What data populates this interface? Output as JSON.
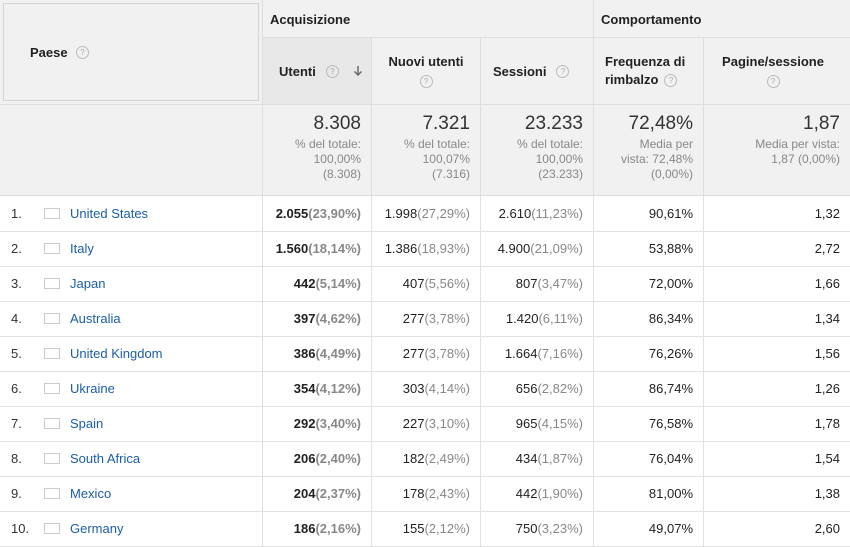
{
  "header": {
    "paese": "Paese",
    "group_acquisizione": "Acquisizione",
    "group_comportamento": "Comportamento",
    "col_utenti": "Utenti",
    "col_nuovi_utenti": "Nuovi utenti",
    "col_sessioni": "Sessioni",
    "col_frequenza_l1": "Frequenza di",
    "col_frequenza_l2": "rimbalzo",
    "col_pagine": "Pagine/sessione",
    "help": "?"
  },
  "totals": {
    "utenti": {
      "value": "8.308",
      "l1": "% del totale:",
      "l2": "100,00%",
      "l3": "(8.308)"
    },
    "nuovi": {
      "value": "7.321",
      "l1": "% del totale:",
      "l2": "100,07%",
      "l3": "(7.316)"
    },
    "sessioni": {
      "value": "23.233",
      "l1": "% del totale:",
      "l2": "100,00%",
      "l3": "(23.233)"
    },
    "frequenza": {
      "value": "72,48%",
      "l1": "Media per",
      "l2": "vista: 72,48%",
      "l3": "(0,00%)"
    },
    "pagine": {
      "value": "1,87",
      "l1": "Media per vista:",
      "l2": "1,87 (0,00%)"
    }
  },
  "rows": [
    {
      "rank": "1.",
      "country": "United States",
      "flag": "us",
      "utenti": "2.055",
      "utenti_pct": "(23,90%)",
      "nuovi": "1.998",
      "nuovi_pct": "(27,29%)",
      "sessioni": "2.610",
      "sessioni_pct": "(11,23%)",
      "frequenza": "90,61%",
      "pagine": "1,32"
    },
    {
      "rank": "2.",
      "country": "Italy",
      "flag": "it",
      "utenti": "1.560",
      "utenti_pct": "(18,14%)",
      "nuovi": "1.386",
      "nuovi_pct": "(18,93%)",
      "sessioni": "4.900",
      "sessioni_pct": "(21,09%)",
      "frequenza": "53,88%",
      "pagine": "2,72"
    },
    {
      "rank": "3.",
      "country": "Japan",
      "flag": "jp",
      "utenti": "442",
      "utenti_pct": "(5,14%)",
      "nuovi": "407",
      "nuovi_pct": "(5,56%)",
      "sessioni": "807",
      "sessioni_pct": "(3,47%)",
      "frequenza": "72,00%",
      "pagine": "1,66"
    },
    {
      "rank": "4.",
      "country": "Australia",
      "flag": "au",
      "utenti": "397",
      "utenti_pct": "(4,62%)",
      "nuovi": "277",
      "nuovi_pct": "(3,78%)",
      "sessioni": "1.420",
      "sessioni_pct": "(6,11%)",
      "frequenza": "86,34%",
      "pagine": "1,34"
    },
    {
      "rank": "5.",
      "country": "United Kingdom",
      "flag": "gb",
      "utenti": "386",
      "utenti_pct": "(4,49%)",
      "nuovi": "277",
      "nuovi_pct": "(3,78%)",
      "sessioni": "1.664",
      "sessioni_pct": "(7,16%)",
      "frequenza": "76,26%",
      "pagine": "1,56"
    },
    {
      "rank": "6.",
      "country": "Ukraine",
      "flag": "ua",
      "utenti": "354",
      "utenti_pct": "(4,12%)",
      "nuovi": "303",
      "nuovi_pct": "(4,14%)",
      "sessioni": "656",
      "sessioni_pct": "(2,82%)",
      "frequenza": "86,74%",
      "pagine": "1,26"
    },
    {
      "rank": "7.",
      "country": "Spain",
      "flag": "es",
      "utenti": "292",
      "utenti_pct": "(3,40%)",
      "nuovi": "227",
      "nuovi_pct": "(3,10%)",
      "sessioni": "965",
      "sessioni_pct": "(4,15%)",
      "frequenza": "76,58%",
      "pagine": "1,78"
    },
    {
      "rank": "8.",
      "country": "South Africa",
      "flag": "za",
      "utenti": "206",
      "utenti_pct": "(2,40%)",
      "nuovi": "182",
      "nuovi_pct": "(2,49%)",
      "sessioni": "434",
      "sessioni_pct": "(1,87%)",
      "frequenza": "76,04%",
      "pagine": "1,54"
    },
    {
      "rank": "9.",
      "country": "Mexico",
      "flag": "mx",
      "utenti": "204",
      "utenti_pct": "(2,37%)",
      "nuovi": "178",
      "nuovi_pct": "(2,43%)",
      "sessioni": "442",
      "sessioni_pct": "(1,90%)",
      "frequenza": "81,00%",
      "pagine": "1,38"
    },
    {
      "rank": "10.",
      "country": "Germany",
      "flag": "de",
      "utenti": "186",
      "utenti_pct": "(2,16%)",
      "nuovi": "155",
      "nuovi_pct": "(2,12%)",
      "sessioni": "750",
      "sessioni_pct": "(3,23%)",
      "frequenza": "49,07%",
      "pagine": "2,60"
    }
  ]
}
